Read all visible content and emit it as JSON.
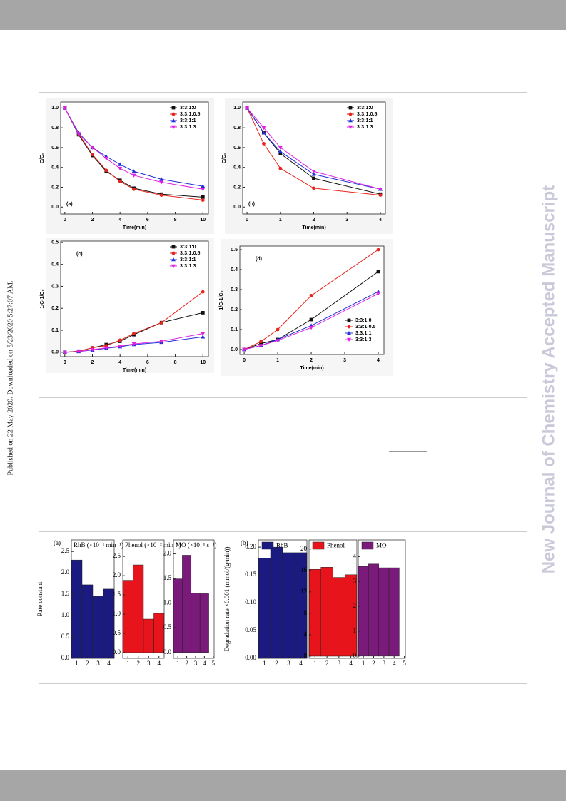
{
  "side_text": "Published on 22 May 2020. Downloaded on 5/23/2020 5:27:07 AM.",
  "watermark": "New Journal of Chemistry Accepted Manuscript",
  "chart_data": [
    {
      "type": "line",
      "title": "(a)",
      "xlabel": "Time(min)",
      "ylabel": "C/C₀",
      "legend": "upper right",
      "x": [
        0,
        1,
        2,
        3,
        4,
        5,
        7,
        10
      ],
      "xlim": [
        -0.3,
        10.4
      ],
      "xticks": [
        0,
        2,
        4,
        6,
        8,
        10
      ],
      "ylim": [
        -0.07,
        1.06
      ],
      "yticks": [
        {
          "value": 0,
          "label": "0.0"
        },
        0.2,
        0.4,
        0.6,
        0.8,
        {
          "value": 1,
          "label": "1.0"
        }
      ],
      "series": [
        {
          "name": "3:3:1:0",
          "color": "#111111",
          "marker": "square",
          "values": [
            1.0,
            0.73,
            0.52,
            0.36,
            0.27,
            0.19,
            0.13,
            0.1
          ]
        },
        {
          "name": "3:3:1:0.5",
          "color": "#e8241c",
          "marker": "circle",
          "values": [
            1.0,
            0.74,
            0.53,
            0.37,
            0.26,
            0.18,
            0.12,
            0.07
          ]
        },
        {
          "name": "3:3:1:1",
          "color": "#2030d8",
          "marker": "triangle",
          "values": [
            1.0,
            0.75,
            0.6,
            0.51,
            0.43,
            0.36,
            0.28,
            0.21
          ]
        },
        {
          "name": "3:3:1:3",
          "color": "#e020e0",
          "marker": "down",
          "values": [
            1.0,
            0.74,
            0.6,
            0.49,
            0.39,
            0.32,
            0.25,
            0.18
          ]
        }
      ]
    },
    {
      "type": "line",
      "title": "(b)",
      "xlabel": "Time(min)",
      "ylabel": "C/C₀",
      "legend": "upper right",
      "x": [
        0,
        0.5,
        1,
        2,
        4
      ],
      "xlim": [
        -0.13,
        4.15
      ],
      "xticks": [
        0,
        1,
        2,
        3,
        4
      ],
      "ylim": [
        -0.07,
        1.06
      ],
      "yticks": [
        {
          "value": 0,
          "label": "0.0"
        },
        0.2,
        0.4,
        0.6,
        0.8,
        {
          "value": 1,
          "label": "1.0"
        }
      ],
      "series": [
        {
          "name": "3:3:1:0",
          "color": "#111111",
          "marker": "square",
          "values": [
            1.0,
            0.75,
            0.54,
            0.29,
            0.13
          ]
        },
        {
          "name": "3:3:1:0.5",
          "color": "#e8241c",
          "marker": "circle",
          "values": [
            1.0,
            0.64,
            0.39,
            0.19,
            0.12
          ]
        },
        {
          "name": "3:3:1:1",
          "color": "#2030d8",
          "marker": "triangle",
          "values": [
            1.0,
            0.75,
            0.56,
            0.33,
            0.18
          ]
        },
        {
          "name": "3:3:1:3",
          "color": "#e020e0",
          "marker": "down",
          "values": [
            1.0,
            0.8,
            0.6,
            0.36,
            0.18
          ]
        }
      ]
    },
    {
      "type": "line",
      "title": "(c)",
      "xlabel": "Time(min)",
      "ylabel": "1/C-1/C₀",
      "legend": "upper right",
      "x": [
        0,
        1,
        2,
        3,
        4,
        5,
        7,
        10
      ],
      "xlim": [
        -0.3,
        10.4
      ],
      "xticks": [
        0,
        2,
        4,
        6,
        8,
        10
      ],
      "ylim": [
        -0.02,
        0.506
      ],
      "yticks": [
        {
          "value": 0,
          "label": "0.0"
        },
        0.1,
        0.2,
        0.3,
        0.4,
        0.5
      ],
      "series": [
        {
          "name": "3:3:1:0",
          "color": "#111111",
          "marker": "square",
          "values": [
            0,
            0.005,
            0.02,
            0.035,
            0.05,
            0.08,
            0.135,
            0.18
          ]
        },
        {
          "name": "3:3:1:0.5",
          "color": "#e8241c",
          "marker": "circle",
          "values": [
            0,
            0.005,
            0.02,
            0.03,
            0.055,
            0.085,
            0.135,
            0.275
          ]
        },
        {
          "name": "3:3:1:1",
          "color": "#2030d8",
          "marker": "triangle",
          "values": [
            0,
            0.003,
            0.01,
            0.018,
            0.025,
            0.035,
            0.045,
            0.07
          ]
        },
        {
          "name": "3:3:1:3",
          "color": "#e020e0",
          "marker": "down",
          "values": [
            0,
            0.003,
            0.012,
            0.02,
            0.028,
            0.038,
            0.05,
            0.085
          ]
        }
      ]
    },
    {
      "type": "line",
      "title": "(d)",
      "xlabel": "Time(min)",
      "ylabel": "1/C-1/C₀",
      "legend": "lower right",
      "x": [
        0,
        0.5,
        1,
        2,
        4
      ],
      "xlim": [
        -0.13,
        4.17
      ],
      "xticks": [
        0,
        1,
        2,
        3,
        4
      ],
      "ylim": [
        -0.025,
        0.518
      ],
      "yticks": [
        {
          "value": 0,
          "label": "0.0"
        },
        0.1,
        0.2,
        0.3,
        0.4,
        0.5
      ],
      "series": [
        {
          "name": "3:3:1:0",
          "color": "#111111",
          "marker": "square",
          "values": [
            0,
            0.03,
            0.05,
            0.15,
            0.39
          ]
        },
        {
          "name": "3:3:1:0.5",
          "color": "#e8241c",
          "marker": "circle",
          "values": [
            0,
            0.04,
            0.1,
            0.27,
            0.5
          ]
        },
        {
          "name": "3:3:1:1",
          "color": "#2030d8",
          "marker": "triangle",
          "values": [
            0,
            0.02,
            0.05,
            0.12,
            0.29
          ]
        },
        {
          "name": "3:3:1:3",
          "color": "#e020e0",
          "marker": "down",
          "values": [
            0,
            0.02,
            0.045,
            0.11,
            0.28
          ]
        }
      ]
    },
    {
      "type": "bar",
      "title": "(a)",
      "ylabel": "Rate constant",
      "subtitle": "RhB (×10⁻¹ min⁻¹)",
      "color": "#1a1a80",
      "x": [
        1,
        2,
        3,
        4
      ],
      "values": [
        2.3,
        1.72,
        1.45,
        1.62
      ],
      "xlim": [
        0.5,
        4.5
      ],
      "xticks": [
        1,
        2,
        3,
        4
      ],
      "ylim": [
        0,
        2.77
      ],
      "yticks": [
        {
          "value": 0,
          "label": "0.0"
        },
        0.5,
        {
          "value": 1,
          "label": "1.0"
        },
        1.5,
        {
          "value": 2,
          "label": "2.0"
        },
        2.5
      ]
    },
    {
      "type": "bar",
      "subtitle": "Phenol (×10⁻² min⁻¹)",
      "color": "#e8141c",
      "x": [
        1,
        2,
        3,
        4
      ],
      "values": [
        1.88,
        2.28,
        0.87,
        1.02
      ],
      "xlim": [
        0.5,
        4.5
      ],
      "xticks": [
        1,
        2,
        3,
        4
      ],
      "ylim": [
        -0.15,
        2.93
      ],
      "yticks": [
        {
          "value": 0,
          "label": "0.0"
        },
        0.5,
        {
          "value": 1,
          "label": "1.0"
        },
        1.5,
        {
          "value": 2,
          "label": "2.0"
        },
        2.5
      ]
    },
    {
      "type": "bar",
      "subtitle": "MO (×10⁻¹ s⁻¹)",
      "color": "#7a1a7a",
      "x": [
        1,
        2,
        3,
        4
      ],
      "values": [
        1.49,
        1.97,
        1.2,
        1.19
      ],
      "xlim": [
        0.5,
        5.1
      ],
      "xticks": [
        1,
        2,
        3,
        4,
        5
      ],
      "ylim": [
        -0.12,
        2.28
      ],
      "yticks": [
        {
          "value": 0,
          "label": "0.0"
        },
        0.5,
        {
          "value": 1,
          "label": "1.0"
        },
        1.5,
        {
          "value": 2,
          "label": "2.0"
        }
      ]
    },
    {
      "type": "bar",
      "title": "(b)",
      "ylabel": "Degradation rate ×0.001 (mmol/(g·min))",
      "legend_label": "RhB",
      "color": "#1a1a80",
      "x": [
        1,
        2,
        3,
        4
      ],
      "values": [
        0.18,
        0.2,
        0.19,
        0.19
      ],
      "xlim": [
        0.5,
        4.5
      ],
      "xticks": [
        1,
        2,
        3,
        4
      ],
      "ylim": [
        0,
        0.213
      ],
      "yticks": [
        {
          "value": 0,
          "label": "0.00"
        },
        0.05,
        {
          "value": 0.1,
          "label": "0.10"
        },
        0.15,
        {
          "value": 0.2,
          "label": "0.20"
        }
      ]
    },
    {
      "type": "bar",
      "legend_label": "Phenol",
      "color": "#e8141c",
      "x": [
        1,
        2,
        3,
        4
      ],
      "values": [
        16.2,
        16.6,
        14.7,
        15.2
      ],
      "xlim": [
        0.5,
        4.5
      ],
      "xticks": [
        1,
        2,
        3,
        4
      ],
      "ylim": [
        -0.4,
        21.7
      ],
      "yticks": [
        0,
        4,
        8,
        12,
        16,
        20
      ]
    },
    {
      "type": "bar",
      "legend_label": "MO",
      "color": "#7a1a7a",
      "x": [
        1,
        2,
        3,
        4
      ],
      "values": [
        3.6,
        3.7,
        3.55,
        3.55
      ],
      "xlim": [
        0.5,
        5.1
      ],
      "xticks": [
        1,
        2,
        3,
        4,
        5
      ],
      "ylim": [
        -0.09,
        4.67
      ],
      "yticks": [
        0,
        1,
        2,
        3,
        4
      ]
    }
  ]
}
